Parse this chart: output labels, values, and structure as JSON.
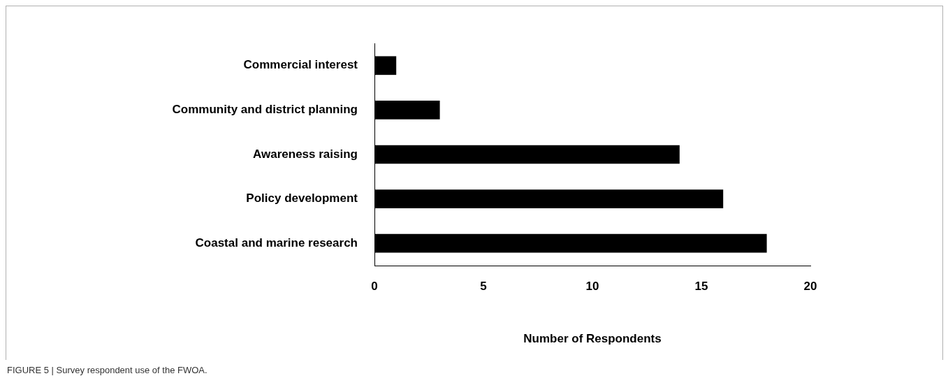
{
  "chart_data": {
    "type": "bar",
    "orientation": "horizontal",
    "categories": [
      "Commercial interest",
      "Community and district planning",
      "Awareness raising",
      "Policy development",
      "Coastal and marine research"
    ],
    "values": [
      1,
      3,
      14,
      16,
      18
    ],
    "color": "#000000",
    "xlim": [
      0,
      20
    ],
    "xticks": [
      0,
      5,
      10,
      15,
      20
    ],
    "xlabel": "Number of Respondents",
    "grid": false,
    "legend": false,
    "annotations": [
      "FIGURE 5 | Survey respondent use of the FWOA."
    ]
  }
}
